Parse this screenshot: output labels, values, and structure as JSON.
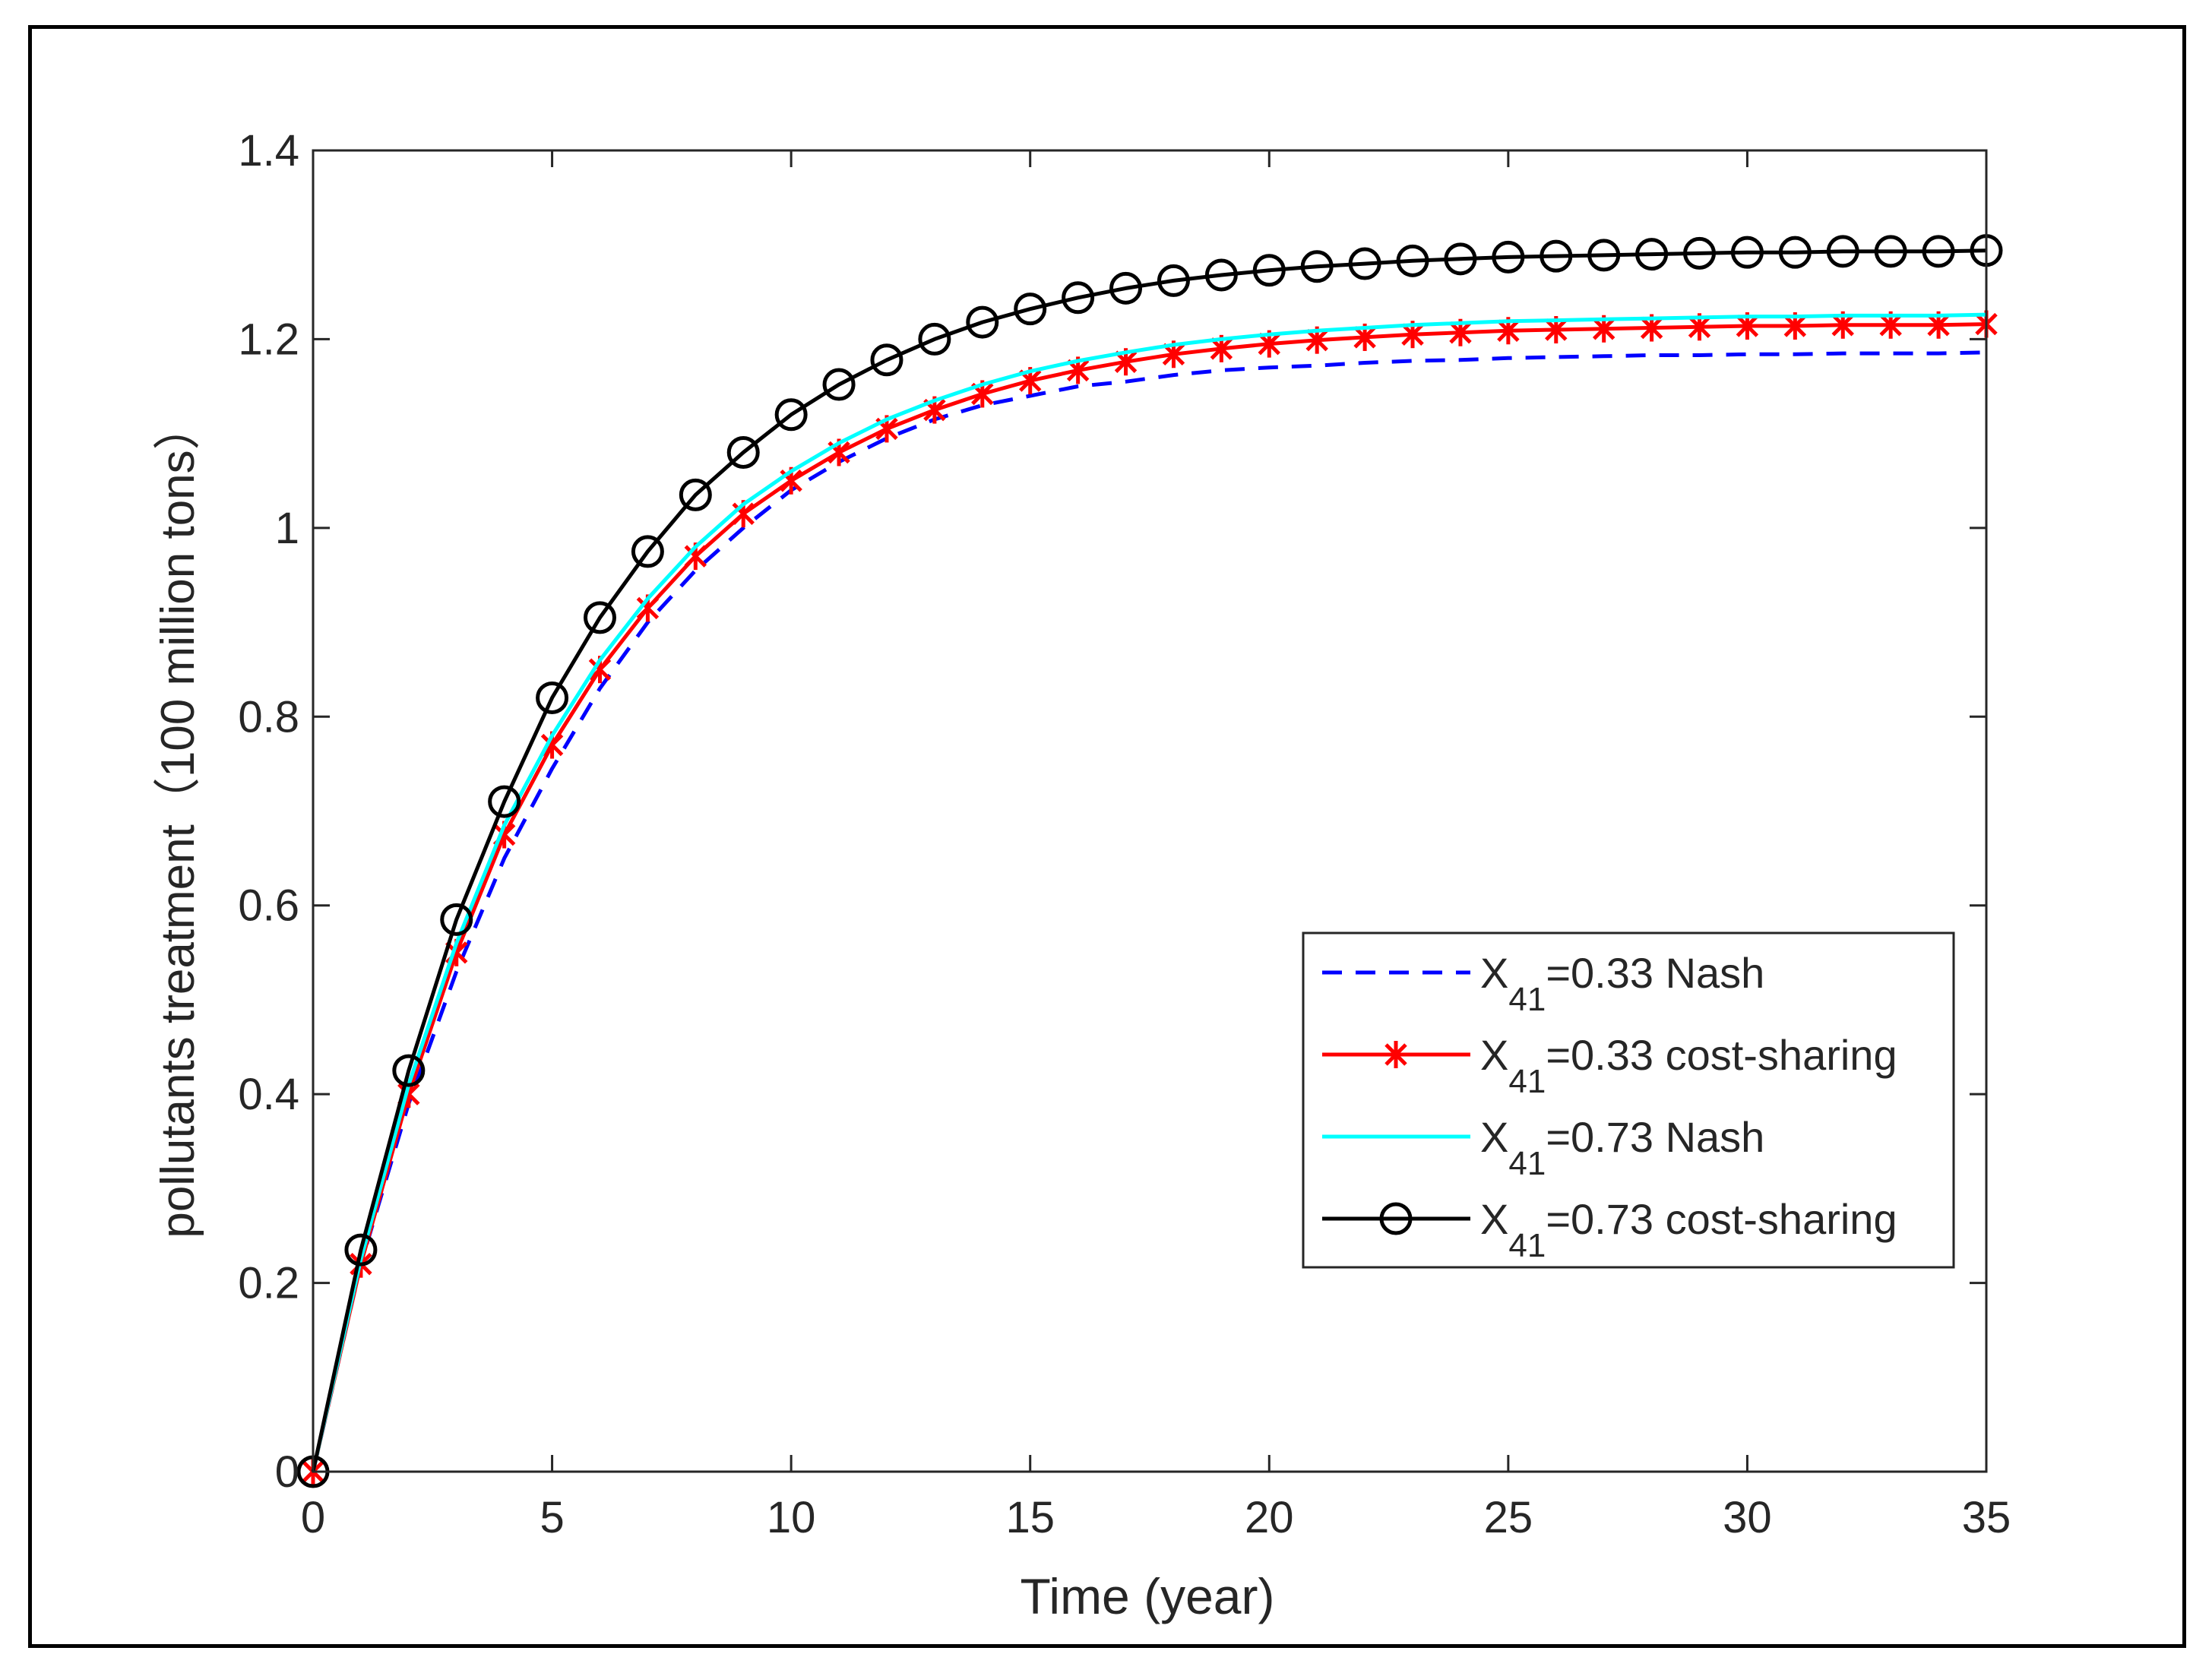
{
  "chart_data": {
    "type": "line",
    "title": "",
    "xlabel": "Time (year)",
    "ylabel": "pollutants treatment（100 million tons）",
    "xlim": [
      0,
      35
    ],
    "ylim": [
      0,
      1.4
    ],
    "xticks": [
      0,
      5,
      10,
      15,
      20,
      25,
      30,
      35
    ],
    "xtick_labels": [
      "0",
      "5",
      "10",
      "15",
      "20",
      "25",
      "30",
      "35"
    ],
    "yticks": [
      0,
      0.2,
      0.4,
      0.6,
      0.8,
      1.0,
      1.2,
      1.4
    ],
    "ytick_labels": [
      "0",
      "0.2",
      "0.4",
      "0.6",
      "0.8",
      "1",
      "1.2",
      "1.4"
    ],
    "grid": false,
    "legend_position": "lower-right",
    "x": [
      0,
      1,
      2,
      3,
      4,
      5,
      6,
      7,
      8,
      9,
      10,
      11,
      12,
      13,
      14,
      15,
      16,
      17,
      18,
      19,
      20,
      21,
      22,
      23,
      24,
      25,
      26,
      27,
      28,
      29,
      30,
      31,
      32,
      33,
      34,
      35
    ],
    "series": [
      {
        "name": "X41=0.33 Nash",
        "label_main": "X",
        "label_sub": "41",
        "label_rest": "=0.33 Nash",
        "color": "#0000ff",
        "line_style": "dashed",
        "marker": "none",
        "values": [
          0,
          0.22,
          0.39,
          0.53,
          0.65,
          0.745,
          0.83,
          0.9,
          0.955,
          1.0,
          1.04,
          1.07,
          1.095,
          1.115,
          1.13,
          1.14,
          1.15,
          1.155,
          1.162,
          1.167,
          1.17,
          1.172,
          1.175,
          1.177,
          1.178,
          1.18,
          1.181,
          1.182,
          1.183,
          1.183,
          1.184,
          1.184,
          1.185,
          1.185,
          1.185,
          1.186
        ]
      },
      {
        "name": "X41=0.33 cost-sharing",
        "label_main": "X",
        "label_sub": "41",
        "label_rest": "=0.33 cost-sharing",
        "color": "#ff0000",
        "line_style": "solid",
        "marker": "asterisk",
        "values": [
          0,
          0.22,
          0.4,
          0.55,
          0.675,
          0.77,
          0.85,
          0.915,
          0.97,
          1.015,
          1.05,
          1.08,
          1.105,
          1.125,
          1.142,
          1.156,
          1.167,
          1.176,
          1.184,
          1.19,
          1.195,
          1.199,
          1.202,
          1.205,
          1.207,
          1.209,
          1.21,
          1.211,
          1.212,
          1.213,
          1.214,
          1.214,
          1.215,
          1.215,
          1.215,
          1.216
        ]
      },
      {
        "name": "X41=0.73 Nash",
        "label_main": "X",
        "label_sub": "41",
        "label_rest": "=0.73 Nash",
        "color": "#00ffff",
        "line_style": "solid",
        "marker": "none",
        "values": [
          0,
          0.225,
          0.41,
          0.56,
          0.685,
          0.78,
          0.86,
          0.925,
          0.98,
          1.025,
          1.06,
          1.09,
          1.115,
          1.135,
          1.152,
          1.166,
          1.177,
          1.186,
          1.194,
          1.2,
          1.205,
          1.209,
          1.212,
          1.215,
          1.217,
          1.219,
          1.22,
          1.221,
          1.222,
          1.223,
          1.224,
          1.224,
          1.225,
          1.225,
          1.225,
          1.226
        ]
      },
      {
        "name": "X41=0.73 cost-sharing",
        "label_main": "X",
        "label_sub": "41",
        "label_rest": "=0.73 cost-sharing",
        "color": "#000000",
        "line_style": "solid",
        "marker": "circle",
        "values": [
          0,
          0.235,
          0.425,
          0.585,
          0.71,
          0.82,
          0.905,
          0.975,
          1.035,
          1.08,
          1.12,
          1.152,
          1.178,
          1.2,
          1.218,
          1.232,
          1.244,
          1.254,
          1.262,
          1.268,
          1.273,
          1.277,
          1.28,
          1.283,
          1.285,
          1.287,
          1.288,
          1.289,
          1.29,
          1.291,
          1.292,
          1.292,
          1.293,
          1.293,
          1.293,
          1.294
        ]
      }
    ]
  }
}
